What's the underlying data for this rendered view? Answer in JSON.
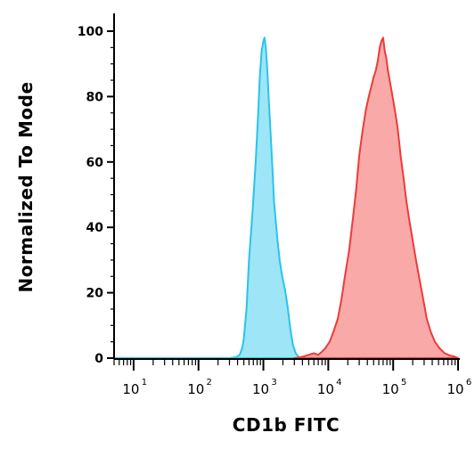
{
  "chart_data": {
    "type": "area",
    "xlabel": "CD1b FITC",
    "ylabel": "Normalized To Mode",
    "x_scale": "log",
    "xlim": [
      5,
      1000000
    ],
    "ylim": [
      0,
      100
    ],
    "y_ticks": [
      {
        "value": 0,
        "label": "0"
      },
      {
        "value": 20,
        "label": "20"
      },
      {
        "value": 40,
        "label": "40"
      },
      {
        "value": 60,
        "label": "60"
      },
      {
        "value": 80,
        "label": "80"
      },
      {
        "value": 100,
        "label": "100"
      }
    ],
    "x_ticks": [
      {
        "value": 10,
        "base": "10",
        "exp": "1"
      },
      {
        "value": 100,
        "base": "10",
        "exp": "2"
      },
      {
        "value": 1000,
        "base": "10",
        "exp": "3"
      },
      {
        "value": 10000,
        "base": "10",
        "exp": "4"
      },
      {
        "value": 100000,
        "base": "10",
        "exp": "5"
      },
      {
        "value": 1000000,
        "base": "10",
        "exp": "6"
      }
    ],
    "grid": false,
    "legend": "none",
    "series": [
      {
        "color": "#29c4ea",
        "fill": "#9ee5f7",
        "points": [
          [
            5,
            0
          ],
          [
            300,
            0
          ],
          [
            380,
            0.3
          ],
          [
            430,
            1
          ],
          [
            470,
            3
          ],
          [
            500,
            6
          ],
          [
            550,
            15
          ],
          [
            600,
            30
          ],
          [
            680,
            45
          ],
          [
            760,
            60
          ],
          [
            830,
            75
          ],
          [
            880,
            86
          ],
          [
            940,
            94
          ],
          [
            1000,
            97
          ],
          [
            1040,
            98
          ],
          [
            1090,
            95
          ],
          [
            1150,
            88
          ],
          [
            1220,
            78
          ],
          [
            1300,
            68
          ],
          [
            1380,
            58
          ],
          [
            1460,
            48
          ],
          [
            1550,
            42
          ],
          [
            1650,
            36
          ],
          [
            1780,
            30
          ],
          [
            1950,
            25
          ],
          [
            2150,
            21
          ],
          [
            2350,
            16
          ],
          [
            2600,
            9
          ],
          [
            2850,
            4
          ],
          [
            3150,
            1.5
          ],
          [
            3500,
            0.3
          ],
          [
            4000,
            0
          ],
          [
            1000000,
            0
          ]
        ]
      },
      {
        "color": "#ee3a3a",
        "fill": "#faa9a9",
        "points": [
          [
            3000,
            0
          ],
          [
            4000,
            0.4
          ],
          [
            5000,
            1
          ],
          [
            6000,
            1.5
          ],
          [
            7000,
            1
          ],
          [
            8000,
            2
          ],
          [
            9000,
            3
          ],
          [
            10500,
            5
          ],
          [
            12000,
            8
          ],
          [
            14000,
            12
          ],
          [
            16000,
            18
          ],
          [
            18000,
            25
          ],
          [
            21000,
            33
          ],
          [
            24000,
            43
          ],
          [
            27000,
            52
          ],
          [
            30000,
            62
          ],
          [
            34000,
            70
          ],
          [
            38000,
            76
          ],
          [
            42000,
            80
          ],
          [
            46000,
            83
          ],
          [
            50000,
            86
          ],
          [
            54000,
            88
          ],
          [
            58000,
            91
          ],
          [
            62000,
            95
          ],
          [
            66000,
            97
          ],
          [
            70000,
            98
          ],
          [
            74000,
            94
          ],
          [
            78000,
            92
          ],
          [
            83000,
            88
          ],
          [
            90000,
            84
          ],
          [
            98000,
            80
          ],
          [
            108000,
            75
          ],
          [
            118000,
            70
          ],
          [
            130000,
            62
          ],
          [
            145000,
            55
          ],
          [
            160000,
            48
          ],
          [
            178000,
            42
          ],
          [
            200000,
            36
          ],
          [
            225000,
            30
          ],
          [
            255000,
            24
          ],
          [
            290000,
            18
          ],
          [
            330000,
            12
          ],
          [
            380000,
            8
          ],
          [
            440000,
            5
          ],
          [
            520000,
            3
          ],
          [
            620000,
            1.5
          ],
          [
            750000,
            0.8
          ],
          [
            900000,
            0.4
          ],
          [
            1000000,
            0
          ]
        ]
      }
    ]
  }
}
